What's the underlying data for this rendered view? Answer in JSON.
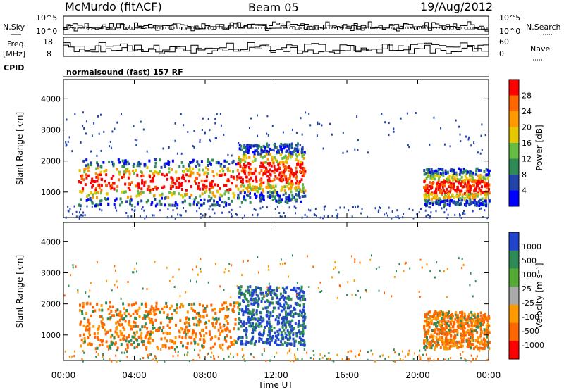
{
  "header": {
    "station": "McMurdo (fitACF)",
    "beam": "Beam 05",
    "date": "19/Aug/2012"
  },
  "labels": {
    "nsky": "N.Sky",
    "freq_top": "Freq.",
    "freq_unit": "[MHz]",
    "cpid": "CPID",
    "nsearch": "N.Search",
    "nave": "Nave",
    "cpid_value": "normalsound (fast) 157 RF",
    "xlabel": "Time UT",
    "ylabel": "Slant Range [km]",
    "power_label": "Power [dB]",
    "velocity_label": "Velocity [m s⁻¹]"
  },
  "small_axes": {
    "noise_left_ticks": [
      "10^5",
      "10^0"
    ],
    "noise_right_ticks": [
      "10^5",
      "10^0"
    ],
    "freq_left_ticks": [
      "18",
      "8"
    ],
    "nave_right_ticks": [
      "60",
      "0"
    ]
  },
  "colors": {
    "power_scale": [
      "#0000ff",
      "#2244aa",
      "#2e8b57",
      "#66bb44",
      "#e6c800",
      "#ff9900",
      "#ff6600",
      "#ff0000"
    ],
    "velocity_scale": [
      "#2244cc",
      "#2e8b57",
      "#55aa33",
      "#aaaaaa",
      "#ff9900",
      "#ff6600",
      "#ff0000"
    ]
  },
  "chart_data": [
    {
      "type": "heatmap",
      "name": "power",
      "x_ticks": [
        "00:00",
        "04:00",
        "08:00",
        "12:00",
        "16:00",
        "20:00",
        "00:00"
      ],
      "x_range_hours": [
        0,
        24
      ],
      "y_ticks": [
        1000,
        2000,
        3000,
        4000
      ],
      "ylim": [
        180,
        4620
      ],
      "colorbar_ticks": [
        "4",
        "8",
        "12",
        "16",
        "20",
        "24",
        "28"
      ],
      "colorbar_label": "Power [dB]",
      "echo_regions": [
        {
          "t_start": 0.8,
          "t_end": 9.8,
          "r_start": 600,
          "r_end": 2100,
          "level": "high"
        },
        {
          "t_start": 9.8,
          "t_end": 13.6,
          "r_start": 700,
          "r_end": 2600,
          "level": "high"
        },
        {
          "t_start": 20.3,
          "t_end": 24.0,
          "r_start": 600,
          "r_end": 1800,
          "level": "high"
        }
      ]
    },
    {
      "type": "heatmap",
      "name": "velocity",
      "x_ticks": [
        "00:00",
        "04:00",
        "08:00",
        "12:00",
        "16:00",
        "20:00",
        "00:00"
      ],
      "x_range_hours": [
        0,
        24
      ],
      "y_ticks": [
        1000,
        2000,
        3000,
        4000
      ],
      "ylim": [
        180,
        4620
      ],
      "colorbar_ticks": [
        "1000",
        "500",
        "100",
        "25",
        "-25",
        "-100",
        "-500",
        "-1000"
      ],
      "colorbar_label": "Velocity [m s⁻¹]",
      "echo_regions": [
        {
          "t_start": 0.8,
          "t_end": 9.8,
          "r_start": 600,
          "r_end": 2100,
          "sign": "negative"
        },
        {
          "t_start": 9.8,
          "t_end": 13.6,
          "r_start": 700,
          "r_end": 2600,
          "sign": "positive"
        },
        {
          "t_start": 20.3,
          "t_end": 24.0,
          "r_start": 600,
          "r_end": 1800,
          "sign": "negative"
        }
      ]
    }
  ]
}
